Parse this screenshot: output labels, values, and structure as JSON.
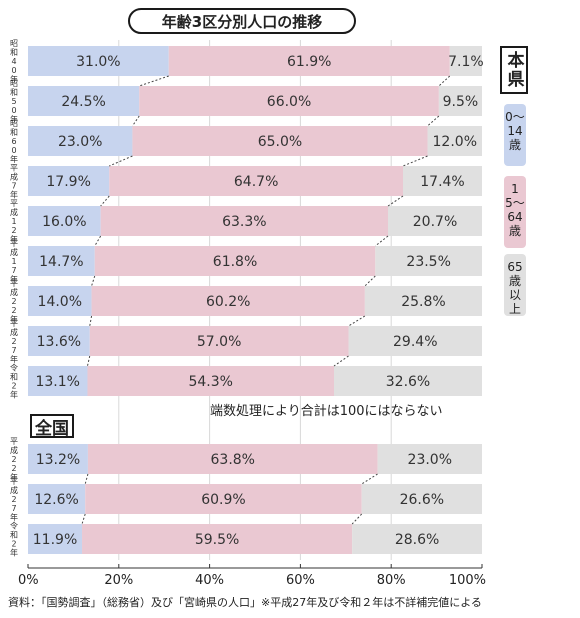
{
  "title": "年齢3区分別人口の推移",
  "tags": {
    "prefecture": "本県",
    "national": "全国"
  },
  "legend": [
    {
      "label": "0〜14歳",
      "color": "#c7d4ee"
    },
    {
      "label": "15〜64歳",
      "color": "#eac8d2"
    },
    {
      "label": "65歳以上",
      "color": "#e0e0e0"
    }
  ],
  "note": "端数処理により合計は100にはならない",
  "source": "資料：「国勢調査」（総務省）及び「宮崎県の人口」※平成27年及び令和２年は不詳補完値による",
  "chart_data": [
    {
      "type": "bar",
      "orientation": "horizontal",
      "stacked": true,
      "group": "本県",
      "categories": [
        "昭和40年",
        "昭和50年",
        "昭和60年",
        "平成7年",
        "平成12年",
        "平成17年",
        "平成22年",
        "平成27年",
        "令和2年"
      ],
      "series": [
        {
          "name": "0〜14歳",
          "values": [
            31.0,
            24.5,
            23.0,
            17.9,
            16.0,
            14.7,
            14.0,
            13.6,
            13.1
          ]
        },
        {
          "name": "15〜64歳",
          "values": [
            61.9,
            66.0,
            65.0,
            64.7,
            63.3,
            61.8,
            60.2,
            57.0,
            54.3
          ]
        },
        {
          "name": "65歳以上",
          "values": [
            7.1,
            9.5,
            12.0,
            17.4,
            20.7,
            23.5,
            25.8,
            29.4,
            32.6
          ]
        }
      ],
      "xlim": [
        0,
        100
      ]
    },
    {
      "type": "bar",
      "orientation": "horizontal",
      "stacked": true,
      "group": "全国",
      "categories": [
        "平成22年",
        "平成27年",
        "令和2年"
      ],
      "series": [
        {
          "name": "0〜14歳",
          "values": [
            13.2,
            12.6,
            11.9
          ]
        },
        {
          "name": "15〜64歳",
          "values": [
            63.8,
            60.9,
            59.5
          ]
        },
        {
          "name": "65歳以上",
          "values": [
            23.0,
            26.6,
            28.6
          ]
        }
      ],
      "xlim": [
        0,
        100
      ]
    }
  ],
  "x_axis_ticks": [
    "0%",
    "20%",
    "40%",
    "60%",
    "80%",
    "100%"
  ]
}
